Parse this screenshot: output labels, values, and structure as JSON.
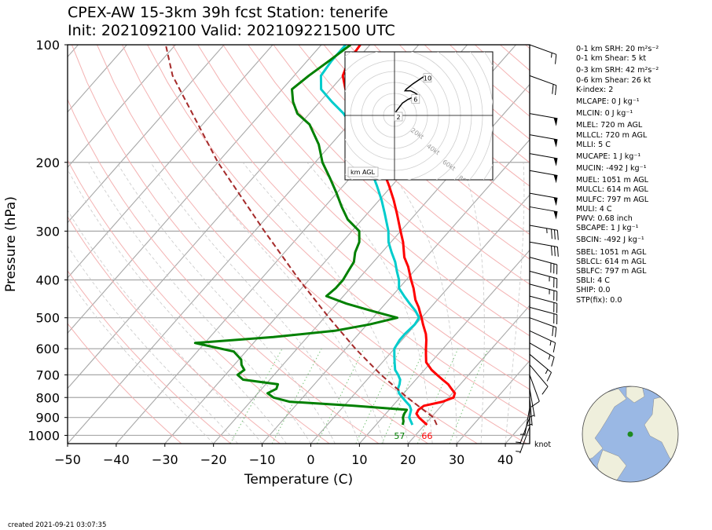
{
  "header": {
    "title_line1": "CPEX-AW 15-3km  39h fcst  Station: tenerife",
    "title_line2": "Init: 2021092100  Valid: 202109221500 UTC"
  },
  "chart_data": {
    "type": "line",
    "subtype": "skew-T log-p sounding",
    "xlabel": "Temperature (C)",
    "ylabel": "Pressure (hPa)",
    "xlim": [
      -50,
      45
    ],
    "ylim": [
      1050,
      100
    ],
    "y_scale": "log",
    "x_ticks": [
      -50,
      -40,
      -30,
      -20,
      -10,
      0,
      10,
      20,
      30,
      40
    ],
    "y_ticks": [
      100,
      200,
      300,
      400,
      500,
      600,
      700,
      800,
      900,
      1000
    ],
    "grid": true,
    "series": [
      {
        "name": "Temperature",
        "color": "#ff0000",
        "points": [
          [
            940,
            20.5
          ],
          [
            920,
            19.0
          ],
          [
            900,
            17.5
          ],
          [
            880,
            16.3
          ],
          [
            860,
            16.0
          ],
          [
            840,
            16.4
          ],
          [
            820,
            19.5
          ],
          [
            800,
            21.0
          ],
          [
            780,
            20.5
          ],
          [
            760,
            19.0
          ],
          [
            740,
            17.5
          ],
          [
            720,
            15.5
          ],
          [
            700,
            13.5
          ],
          [
            680,
            11.5
          ],
          [
            650,
            9.0
          ],
          [
            620,
            7.5
          ],
          [
            600,
            6.5
          ],
          [
            570,
            5.0
          ],
          [
            550,
            3.8
          ],
          [
            520,
            1.5
          ],
          [
            500,
            0.0
          ],
          [
            470,
            -2.5
          ],
          [
            450,
            -4.5
          ],
          [
            420,
            -7.0
          ],
          [
            400,
            -9.0
          ],
          [
            370,
            -12.0
          ],
          [
            350,
            -14.5
          ],
          [
            320,
            -17.5
          ],
          [
            300,
            -20.0
          ],
          [
            270,
            -24.0
          ],
          [
            250,
            -27.0
          ],
          [
            230,
            -30.5
          ],
          [
            210,
            -34.5
          ],
          [
            200,
            -36.5
          ],
          [
            180,
            -41.0
          ],
          [
            160,
            -46.0
          ],
          [
            150,
            -49.0
          ],
          [
            140,
            -53.0
          ],
          [
            130,
            -57.0
          ],
          [
            120,
            -60.0
          ],
          [
            110,
            -61.5
          ],
          [
            100,
            -62.0
          ]
        ]
      },
      {
        "name": "Dewpoint",
        "color": "#00cccc",
        "points": [
          [
            940,
            17.5
          ],
          [
            920,
            16.5
          ],
          [
            900,
            15.5
          ],
          [
            880,
            15.0
          ],
          [
            860,
            14.5
          ],
          [
            840,
            13.5
          ],
          [
            820,
            12.0
          ],
          [
            800,
            10.5
          ],
          [
            780,
            9.0
          ],
          [
            760,
            8.0
          ],
          [
            740,
            7.5
          ],
          [
            720,
            6.8
          ],
          [
            700,
            5.5
          ],
          [
            680,
            4.0
          ],
          [
            650,
            2.5
          ],
          [
            620,
            1.0
          ],
          [
            600,
            0.0
          ],
          [
            570,
            -0.5
          ],
          [
            550,
            -0.5
          ],
          [
            520,
            -0.2
          ],
          [
            500,
            -0.5
          ],
          [
            480,
            -2.5
          ],
          [
            460,
            -5.0
          ],
          [
            440,
            -7.5
          ],
          [
            420,
            -10.0
          ],
          [
            400,
            -11.5
          ],
          [
            380,
            -13.5
          ],
          [
            360,
            -15.5
          ],
          [
            340,
            -18.0
          ],
          [
            320,
            -20.5
          ],
          [
            300,
            -22.5
          ],
          [
            270,
            -26.5
          ],
          [
            250,
            -29.5
          ],
          [
            230,
            -33.0
          ],
          [
            210,
            -37.0
          ],
          [
            200,
            -39.0
          ],
          [
            180,
            -44.0
          ],
          [
            160,
            -49.5
          ],
          [
            150,
            -53.0
          ],
          [
            140,
            -57.5
          ],
          [
            130,
            -62.0
          ],
          [
            120,
            -64.5
          ],
          [
            110,
            -65.0
          ],
          [
            100,
            -65.0
          ]
        ]
      },
      {
        "name": "Virtual/RH profile (green)",
        "color": "#008000",
        "points": [
          [
            940,
            15.5
          ],
          [
            920,
            15.0
          ],
          [
            900,
            14.2
          ],
          [
            880,
            13.8
          ],
          [
            860,
            13.6
          ],
          [
            840,
            2.0
          ],
          [
            820,
            -12.0
          ],
          [
            800,
            -16.0
          ],
          [
            780,
            -18.0
          ],
          [
            760,
            -17.0
          ],
          [
            740,
            -17.5
          ],
          [
            720,
            -25.5
          ],
          [
            700,
            -27.5
          ],
          [
            680,
            -27.0
          ],
          [
            660,
            -28.5
          ],
          [
            640,
            -29.5
          ],
          [
            610,
            -32.5
          ],
          [
            580,
            -42.0
          ],
          [
            560,
            -27.0
          ],
          [
            540,
            -15.5
          ],
          [
            520,
            -9.5
          ],
          [
            500,
            -5.0
          ],
          [
            480,
            -11.5
          ],
          [
            460,
            -18.0
          ],
          [
            440,
            -23.5
          ],
          [
            420,
            -23.0
          ],
          [
            400,
            -23.0
          ],
          [
            380,
            -23.5
          ],
          [
            360,
            -24.0
          ],
          [
            340,
            -25.5
          ],
          [
            320,
            -26.5
          ],
          [
            300,
            -28.5
          ],
          [
            280,
            -33.0
          ],
          [
            260,
            -36.5
          ],
          [
            240,
            -40.0
          ],
          [
            220,
            -44.0
          ],
          [
            200,
            -48.5
          ],
          [
            180,
            -52.5
          ],
          [
            160,
            -58.0
          ],
          [
            150,
            -62.5
          ],
          [
            140,
            -65.5
          ],
          [
            130,
            -68.0
          ],
          [
            120,
            -67.0
          ],
          [
            110,
            -65.5
          ],
          [
            100,
            -64.0
          ]
        ]
      },
      {
        "name": "Parcel path",
        "color": "#a52a2a",
        "dashed": true,
        "points": [
          [
            940,
            22.5
          ],
          [
            900,
            20.5
          ],
          [
            860,
            17.0
          ],
          [
            800,
            11.5
          ],
          [
            700,
            2.0
          ],
          [
            600,
            -8.0
          ],
          [
            500,
            -19.0
          ],
          [
            400,
            -32.0
          ],
          [
            300,
            -48.0
          ],
          [
            200,
            -70.0
          ],
          [
            120,
            -95.0
          ],
          [
            100,
            -102.0
          ]
        ]
      }
    ],
    "surface_labels": [
      {
        "text": "57",
        "color": "#008000",
        "T": 15.5
      },
      {
        "text": "66",
        "color": "#ff0000",
        "T": 20.5
      }
    ],
    "wind_unit_label": "knot",
    "hodograph": {
      "label": "km AGL",
      "rings": [
        "20kt",
        "40kt",
        "60kt",
        "80kt"
      ],
      "height_labels": [
        "2",
        "6",
        "10"
      ],
      "points": [
        [
          0,
          0
        ],
        [
          1,
          2
        ],
        [
          3,
          4
        ],
        [
          5,
          6
        ],
        [
          6,
          7
        ],
        [
          8,
          8
        ],
        [
          10,
          9
        ],
        [
          13,
          10
        ],
        [
          16,
          11
        ],
        [
          17,
          12
        ],
        [
          15,
          13
        ],
        [
          12,
          14
        ],
        [
          10,
          14
        ],
        [
          8,
          14
        ],
        [
          9,
          15
        ],
        [
          14,
          18
        ],
        [
          18,
          20
        ],
        [
          20,
          21
        ],
        [
          22,
          22
        ],
        [
          24,
          23
        ]
      ]
    },
    "wind_barbs": [
      {
        "p": 100,
        "kt": 15,
        "dir": 290
      },
      {
        "p": 120,
        "kt": 20,
        "dir": 290
      },
      {
        "p": 150,
        "kt": 50,
        "dir": 280
      },
      {
        "p": 170,
        "kt": 50,
        "dir": 280
      },
      {
        "p": 190,
        "kt": 50,
        "dir": 280
      },
      {
        "p": 210,
        "kt": 50,
        "dir": 280
      },
      {
        "p": 240,
        "kt": 50,
        "dir": 280
      },
      {
        "p": 260,
        "kt": 50,
        "dir": 280
      },
      {
        "p": 290,
        "kt": 35,
        "dir": 280
      },
      {
        "p": 320,
        "kt": 30,
        "dir": 280
      },
      {
        "p": 350,
        "kt": 30,
        "dir": 285
      },
      {
        "p": 380,
        "kt": 25,
        "dir": 285
      },
      {
        "p": 410,
        "kt": 25,
        "dir": 285
      },
      {
        "p": 440,
        "kt": 20,
        "dir": 285
      },
      {
        "p": 470,
        "kt": 20,
        "dir": 285
      },
      {
        "p": 500,
        "kt": 20,
        "dir": 290
      },
      {
        "p": 540,
        "kt": 15,
        "dir": 295
      },
      {
        "p": 580,
        "kt": 15,
        "dir": 300
      },
      {
        "p": 620,
        "kt": 15,
        "dir": 310
      },
      {
        "p": 660,
        "kt": 10,
        "dir": 320
      },
      {
        "p": 700,
        "kt": 10,
        "dir": 340
      },
      {
        "p": 760,
        "kt": 5,
        "dir": 350
      },
      {
        "p": 800,
        "kt": 5,
        "dir": 355
      },
      {
        "p": 850,
        "kt": 5,
        "dir": 10
      },
      {
        "p": 900,
        "kt": 5,
        "dir": 20
      },
      {
        "p": 950,
        "kt": 5,
        "dir": 20
      }
    ]
  },
  "indices": [
    "0-1 km SRH: 20 m²s⁻²",
    "0-1 km Shear: 5 kt",
    "0-3 km SRH: 42 m²s⁻²",
    "0-6 km Shear: 26 kt",
    "K-index: 2",
    "MLCAPE: 0 J kg⁻¹",
    "MLCIN: 0 J kg⁻¹",
    "MLEL: 720 m AGL",
    "MLLCL: 720 m AGL",
    "MLLI: 5 C",
    "MUCAPE: 1 J kg⁻¹",
    "MUCIN: -492 J kg⁻¹",
    "MUEL: 1051 m AGL",
    "MULCL: 614 m AGL",
    "MULFC: 797 m AGL",
    "MULI: 4 C",
    "PWV: 0.68 inch",
    "SBCAPE: 1 J kg⁻¹",
    "SBCIN: -492 J kg⁻¹",
    "SBEL: 1051 m AGL",
    "SBLCL: 614 m AGL",
    "SBLFC: 797 m AGL",
    "SBLI: 4 C",
    "SHIP: 0.0",
    "STP(fix): 0.0"
  ],
  "footer": {
    "created": "created 2021-09-21 03:07:35"
  },
  "colors": {
    "temperature": "#ff0000",
    "dewpoint": "#00cccc",
    "green_profile": "#008000",
    "parcel": "#a52a2a",
    "land": "#efefdc",
    "ocean": "#9ab8e4"
  }
}
